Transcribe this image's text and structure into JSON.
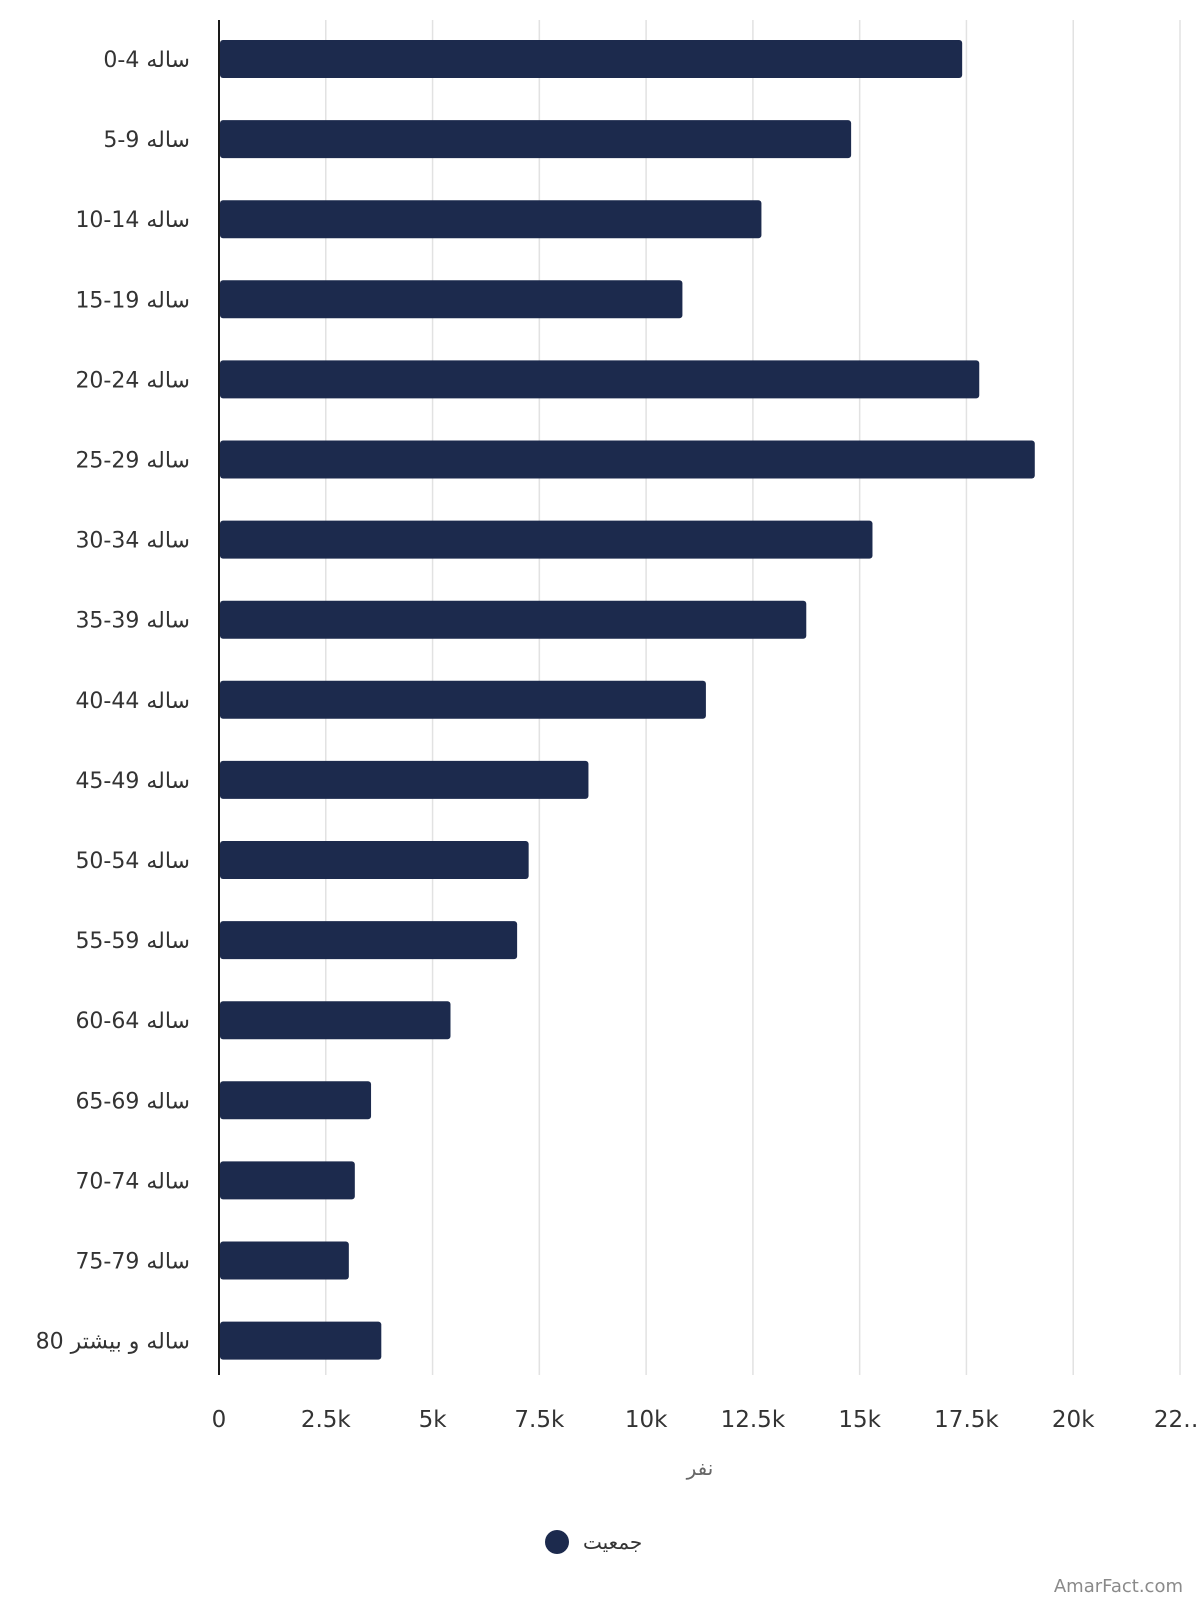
{
  "chart_data": {
    "type": "bar",
    "orientation": "horizontal",
    "categories": [
      "0-4 ساله",
      "5-9 ساله",
      "10-14 ساله",
      "15-19 ساله",
      "20-24 ساله",
      "25-29 ساله",
      "30-34 ساله",
      "35-39 ساله",
      "40-44 ساله",
      "45-49 ساله",
      "50-54 ساله",
      "55-59 ساله",
      "60-64 ساله",
      "65-69 ساله",
      "70-74 ساله",
      "75-79 ساله",
      "80 ساله و بیشتر"
    ],
    "series": [
      {
        "name": "جمعیت",
        "color": "#1c2a4d",
        "values": [
          17400,
          14800,
          12700,
          10850,
          17800,
          19100,
          15300,
          13750,
          11400,
          8650,
          7250,
          6980,
          5420,
          3560,
          3180,
          3040,
          3800
        ]
      }
    ],
    "x_ticks": [
      "0",
      "2.5k",
      "5k",
      "7.5k",
      "10k",
      "12.5k",
      "15k",
      "17.5k",
      "20k",
      "22…"
    ],
    "xlim": [
      0,
      22500
    ],
    "xlabel": "نفر",
    "grid": true,
    "legend_position": "bottom"
  },
  "watermark": "AmarFact.com"
}
